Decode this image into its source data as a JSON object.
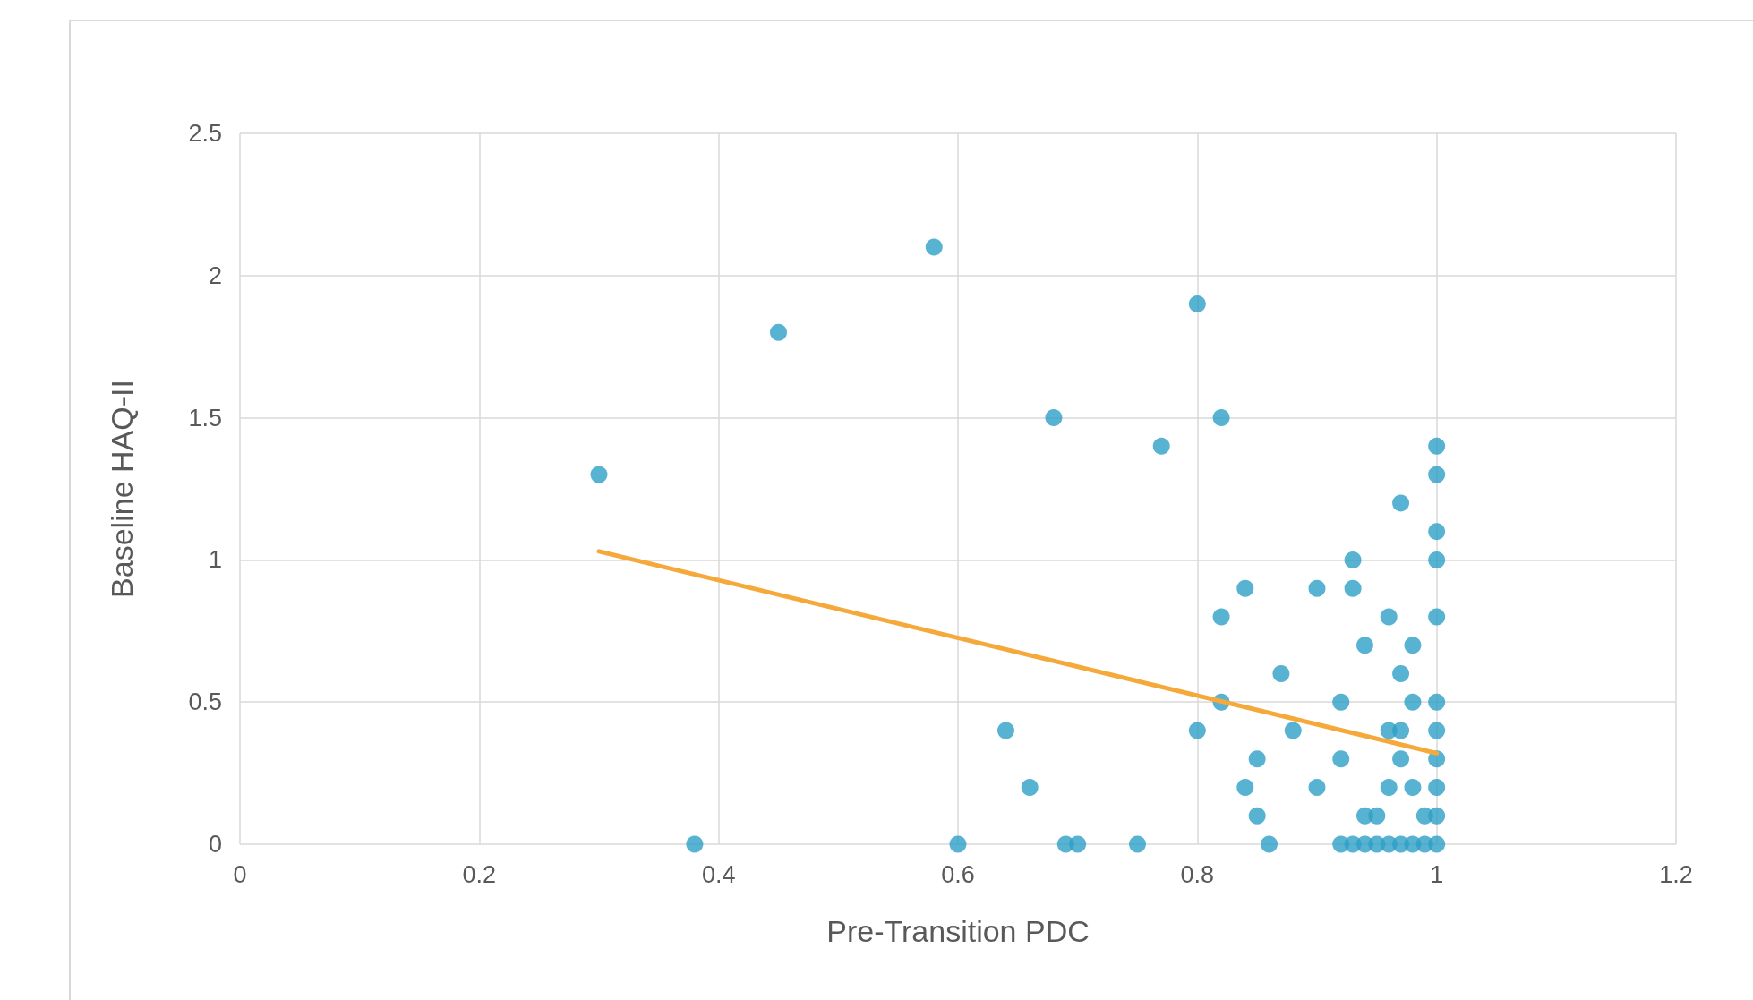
{
  "chart_data": {
    "type": "scatter",
    "xlabel": "Pre-Transition PDC",
    "ylabel": "Baseline HAQ-II",
    "xlim": [
      0,
      1.2
    ],
    "xticks": [
      0,
      0.2,
      0.4,
      0.6,
      0.8,
      1,
      1.2
    ],
    "ylim": [
      0,
      2.5
    ],
    "yticks": [
      0,
      0.5,
      1,
      1.5,
      2,
      2.5
    ],
    "grid": true,
    "series": [
      {
        "marker": "circle",
        "color": "#2e9fc7",
        "x": [
          0.3,
          0.38,
          0.45,
          0.58,
          0.6,
          0.64,
          0.66,
          0.68,
          0.69,
          0.7,
          0.75,
          0.77,
          0.8,
          0.8,
          0.82,
          0.82,
          0.82,
          0.84,
          0.84,
          0.85,
          0.85,
          0.86,
          0.87,
          0.88,
          0.9,
          0.9,
          0.92,
          0.92,
          0.92,
          0.93,
          0.93,
          0.93,
          0.94,
          0.94,
          0.94,
          0.95,
          0.95,
          0.96,
          0.96,
          0.96,
          0.96,
          0.97,
          0.97,
          0.97,
          0.97,
          0.97,
          0.98,
          0.98,
          0.98,
          0.98,
          0.99,
          0.99,
          1,
          1,
          1,
          1,
          1,
          1,
          1,
          1,
          1,
          1,
          1
        ],
        "values": [
          1.3,
          0,
          1.8,
          2.1,
          0,
          0.4,
          0.2,
          1.5,
          0,
          0,
          0,
          1.4,
          1.9,
          0.4,
          1.5,
          0.8,
          0.5,
          0.9,
          0.2,
          0.3,
          0.1,
          0,
          0.6,
          0.4,
          0.9,
          0.2,
          0.5,
          0.3,
          0,
          1.0,
          0.9,
          0,
          0.7,
          0.1,
          0,
          0.1,
          0,
          0.8,
          0.4,
          0.2,
          0,
          1.2,
          0.6,
          0.4,
          0.3,
          0,
          0.7,
          0.5,
          0.2,
          0,
          0.1,
          0,
          1.4,
          1.3,
          1.1,
          1.0,
          0.8,
          0.5,
          0.4,
          0.3,
          0.2,
          0.1,
          0
        ]
      },
      {
        "type": "line",
        "marker": "none",
        "line_style": "solid",
        "color": "#f5a93a",
        "x": [
          0.3,
          1
        ],
        "values": [
          1.03,
          0.32
        ]
      }
    ]
  }
}
